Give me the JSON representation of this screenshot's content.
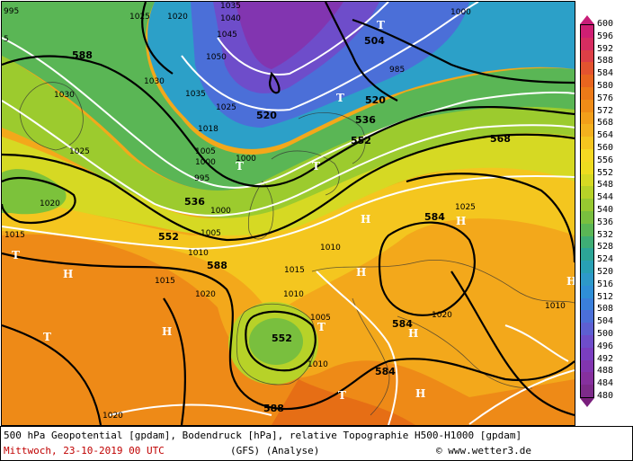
{
  "map": {
    "geopotential_labels": [
      "588",
      "504",
      "520",
      "536",
      "552",
      "568",
      "536",
      "552",
      "584",
      "588",
      "552",
      "584",
      "588",
      "584",
      "520",
      "536",
      "552",
      "568",
      "504"
    ],
    "pressure_labels": [
      "995",
      "1025",
      "1020",
      "1035",
      "1040",
      "1045",
      "1050",
      "1030",
      "1035",
      "1025",
      "1018",
      "1005",
      "1000",
      "995",
      "1000",
      "1030",
      "1025",
      "1020",
      "1015",
      "1010",
      "1005",
      "1000",
      "1010",
      "1015",
      "1020",
      "1015",
      "1010",
      "1005",
      "1010",
      "1020",
      "1025",
      "1010",
      "1020",
      "1000",
      "985"
    ],
    "symbols": [
      "T",
      "T",
      "T",
      "T",
      "T",
      "T",
      "H",
      "H",
      "H",
      "H",
      "H",
      "H",
      "H",
      "H",
      "T",
      "T"
    ],
    "map_extra_digit": "5"
  },
  "legend": {
    "levels": [
      "600",
      "596",
      "592",
      "588",
      "584",
      "580",
      "576",
      "572",
      "568",
      "564",
      "560",
      "556",
      "552",
      "548",
      "544",
      "540",
      "536",
      "532",
      "528",
      "524",
      "520",
      "516",
      "512",
      "508",
      "504",
      "500",
      "496",
      "492",
      "488",
      "484",
      "480"
    ],
    "colors": [
      "#cf1f73",
      "#d62d60",
      "#dd3f46",
      "#e3532f",
      "#e8651f",
      "#ec7a18",
      "#ef8c17",
      "#f29f1a",
      "#f4b01e",
      "#f5c51f",
      "#f5d822",
      "#eedc1f",
      "#d6d923",
      "#b7d228",
      "#97c930",
      "#79bf3e",
      "#5ab655",
      "#3ead75",
      "#2ca597",
      "#28a0b4",
      "#2d99c9",
      "#2f8fd7",
      "#3a7fdb",
      "#4b6fd8",
      "#5d5fd2",
      "#6e4dca",
      "#7a3ec0",
      "#8235b0",
      "#86309e",
      "#7d2b8a"
    ]
  },
  "footer": {
    "line1": "500 hPa Geopotential [gpdam], Bodendruck [hPa], relative Topographie H500-H1000 [gpdam]",
    "date": "Mittwoch, 23-10-2019  00 UTC",
    "model": "(GFS)  (Analyse)",
    "credit": "© www.wetter3.de"
  }
}
